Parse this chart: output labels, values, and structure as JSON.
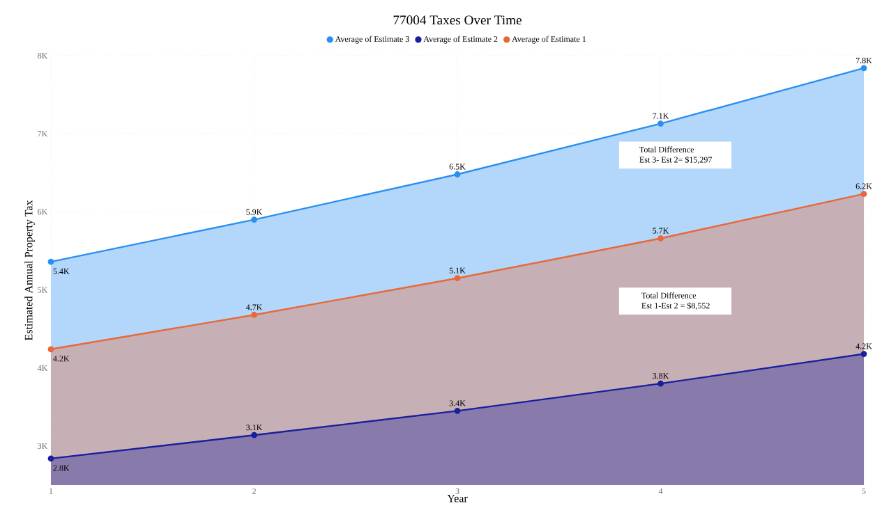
{
  "chart_data": {
    "type": "area",
    "title": "77004 Taxes Over Time",
    "xlabel": "Year",
    "ylabel": "Estimated Annual Property Tax",
    "x": [
      1,
      2,
      3,
      4,
      5
    ],
    "xlim": [
      1,
      5
    ],
    "xticks": [
      1,
      2,
      3,
      4,
      5
    ],
    "ylim": [
      2500,
      8000
    ],
    "yticks": [
      {
        "value": 3000,
        "label": "3K"
      },
      {
        "value": 4000,
        "label": "4K"
      },
      {
        "value": 5000,
        "label": "5K"
      },
      {
        "value": 6000,
        "label": "6K"
      },
      {
        "value": 7000,
        "label": "7K"
      },
      {
        "value": 8000,
        "label": "8K"
      }
    ],
    "series": [
      {
        "name": "Average of Estimate 3",
        "color": "#2b8ff0",
        "values": [
          5360,
          5900,
          6480,
          7130,
          7840
        ],
        "value_labels": [
          "5.4K",
          "5.9K",
          "6.5K",
          "7.1K",
          "7.8K"
        ]
      },
      {
        "name": "Average of Estimate 2",
        "color": "#1a1f9c",
        "values": [
          2840,
          3140,
          3450,
          3800,
          4180
        ],
        "value_labels": [
          "2.8K",
          "3.1K",
          "3.4K",
          "3.8K",
          "4.2K"
        ]
      },
      {
        "name": "Average of Estimate 1",
        "color": "#e8683a",
        "values": [
          4240,
          4680,
          5150,
          5660,
          6230
        ],
        "value_labels": [
          "4.2K",
          "4.7K",
          "5.1K",
          "5.7K",
          "6.2K"
        ]
      }
    ],
    "annotations": [
      "Total Difference",
      "Est 3- Est 2= $15,297",
      "Total Difference",
      "Est 1-Est 2 = $8,552"
    ],
    "grid": true,
    "legend": "top",
    "marker": "circle",
    "line_style": "solid"
  }
}
